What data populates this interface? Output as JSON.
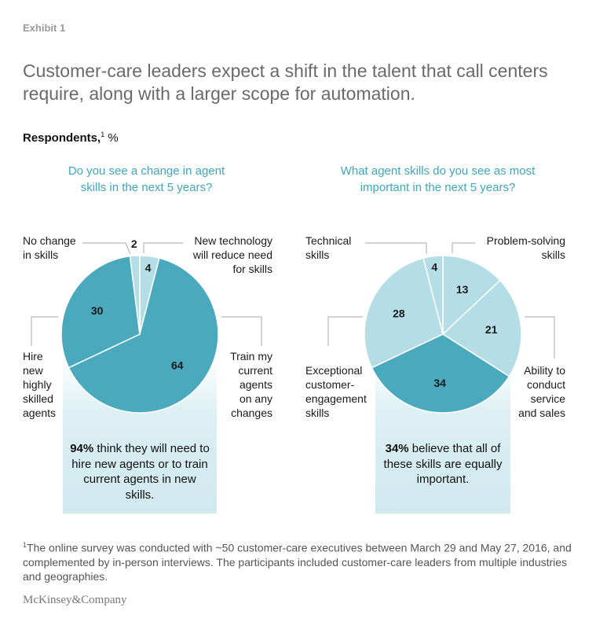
{
  "exhibit": "Exhibit 1",
  "title": "Customer-care leaders expect a shift in the talent that call centers require, along with a larger scope for automation.",
  "respondents": {
    "label": "Respondents,",
    "sup": "1",
    "unit": "%"
  },
  "colors": {
    "dark": "#4aa9bc",
    "light": "#b4dde6",
    "lighter": "#cfe9ef",
    "question": "#3fa7b9"
  },
  "chart_data": [
    {
      "type": "pie",
      "title": "Do you see a change in agent skills in the next 5 years?",
      "title_lines": [
        "Do you see a change in agent",
        "skills in the next 5 years?"
      ],
      "slices": [
        {
          "label": "New technology will reduce need for skills",
          "label_lines": [
            "New technology",
            "will reduce need",
            "for skills"
          ],
          "value": 4,
          "color": "#b4dde6"
        },
        {
          "label": "Train my current agents on any changes",
          "label_lines": [
            "Train my",
            "current",
            "agents",
            "on any",
            "changes"
          ],
          "value": 64,
          "color": "#4aa9bc"
        },
        {
          "label": "Hire new highly skilled agents",
          "label_lines": [
            "Hire",
            "new",
            "highly",
            "skilled",
            "agents"
          ],
          "value": 30,
          "color": "#4aa9bc"
        },
        {
          "label": "No change in skills",
          "label_lines": [
            "No change",
            "in skills"
          ],
          "value": 2,
          "color": "#b4dde6"
        }
      ],
      "callout": {
        "bold": "94%",
        "text": " think they will need to hire new agents or to train current agents in new skills."
      }
    },
    {
      "type": "pie",
      "title": "What agent skills do you see as most important in the next 5 years?",
      "title_lines": [
        "What agent skills do you see as most",
        "important in the next 5 years?"
      ],
      "slices": [
        {
          "label": "Problem-solving skills",
          "label_lines": [
            "Problem-solving",
            "skills"
          ],
          "value": 13,
          "color": "#b4dde6"
        },
        {
          "label": "Ability to conduct service and sales",
          "label_lines": [
            "Ability to",
            "conduct",
            "service",
            "and sales"
          ],
          "value": 21,
          "color": "#b4dde6"
        },
        {
          "label": "All skills equally important",
          "value": 34,
          "color": "#4aa9bc"
        },
        {
          "label": "Exceptional customer-engagement skills",
          "label_lines": [
            "Exceptional",
            "customer-",
            "engagement",
            "skills"
          ],
          "value": 28,
          "color": "#b4dde6"
        },
        {
          "label": "Technical skills",
          "label_lines": [
            "Technical",
            "skills"
          ],
          "value": 4,
          "color": "#b4dde6"
        }
      ],
      "callout": {
        "bold": "34%",
        "text": " believe that all of these skills are equally important."
      }
    }
  ],
  "footnote": {
    "sup": "1",
    "text": "The online survey was conducted with ~50 customer-care executives between March 29 and May 27, 2016, and complemented by in-person interviews. The participants included customer-care leaders from multiple industries and geographies."
  },
  "brand": "McKinsey&Company"
}
